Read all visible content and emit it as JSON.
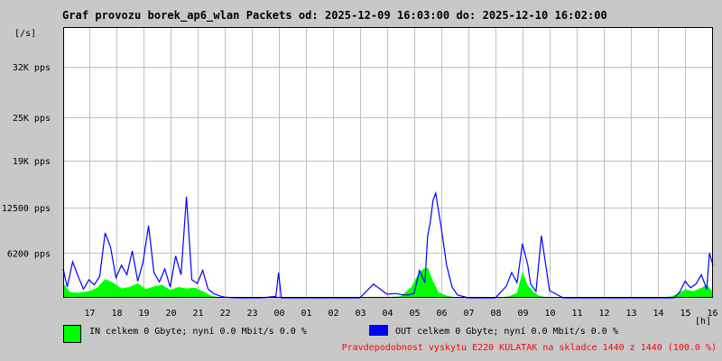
{
  "title": "Graf provozu borek_ap6_wlan Packets od: 2025-12-09 16:03:00 do: 2025-12-10 16:02:00",
  "legend": {
    "in_text": "IN celkem 0 Gbyte; nyní   0.0 Mbit/s 0.0 %",
    "out_text": "OUT celkem 0 Gbyte; nyní   0.0 Mbit/s 0.0 %"
  },
  "footer_note": "Pravdepodobnost vyskytu E220 KULATAK na skladce 1440 z 1440 (100.0 %)",
  "colors": {
    "in": "#00ff00",
    "out": "#0000ff",
    "grid": "#c0c0c0",
    "plot_bg": "#ffffff",
    "page_bg": "#c8c8c8"
  },
  "chart_data": {
    "type": "area",
    "title": "Graf provozu borek_ap6_wlan Packets od: 2025-12-09 16:03:00 do: 2025-12-10 16:02:00",
    "xlabel": "[h]",
    "ylabel": "[/s]",
    "x_ticks": [
      "17",
      "18",
      "19",
      "20",
      "21",
      "22",
      "23",
      "00",
      "01",
      "02",
      "03",
      "04",
      "05",
      "06",
      "07",
      "08",
      "09",
      "10",
      "11",
      "12",
      "13",
      "14",
      "15",
      "16"
    ],
    "y_ticks": [
      "6200 pps",
      "12500 pps",
      "19K pps",
      "25K pps",
      "32K pps"
    ],
    "y_tick_values": [
      6200,
      12500,
      19000,
      25000,
      32000
    ],
    "ylim": [
      0,
      37500
    ],
    "x_range_hours": [
      16.05,
      40.03
    ],
    "x_unit": "hours from 2025-12-09 00:00",
    "grid": true,
    "series": [
      {
        "name": "IN",
        "color": "#00ff00",
        "x": [
          16.05,
          16.3,
          16.6,
          17.0,
          17.3,
          17.6,
          17.9,
          18.2,
          18.5,
          18.8,
          19.1,
          19.4,
          19.7,
          20.0,
          20.3,
          20.6,
          20.9,
          21.2,
          21.5,
          21.8,
          22.0,
          22.5,
          23.0,
          24.0,
          25.0,
          26.0,
          26.8,
          27.5,
          28.0,
          28.5,
          28.9,
          29.1,
          29.3,
          29.5,
          29.7,
          29.9,
          30.2,
          30.5,
          30.8,
          31.0,
          31.5,
          32.0,
          32.5,
          32.8,
          33.0,
          33.2,
          33.4,
          33.6,
          34.0,
          35.0,
          36.0,
          37.0,
          38.0,
          38.5,
          38.8,
          39.0,
          39.3,
          39.6,
          39.8,
          40.03
        ],
        "values": [
          2000,
          800,
          700,
          900,
          1400,
          2600,
          2100,
          1300,
          1500,
          2000,
          1200,
          1600,
          1800,
          1100,
          1500,
          1300,
          1400,
          900,
          300,
          100,
          0,
          0,
          0,
          0,
          0,
          0,
          0,
          100,
          100,
          200,
          1500,
          2900,
          3900,
          4200,
          2300,
          800,
          300,
          100,
          0,
          0,
          0,
          0,
          200,
          700,
          3600,
          1700,
          900,
          300,
          0,
          0,
          0,
          0,
          0,
          200,
          700,
          1200,
          900,
          1400,
          1800,
          800
        ]
      },
      {
        "name": "OUT",
        "color": "#0000ff",
        "x": [
          16.05,
          16.2,
          16.4,
          16.6,
          16.8,
          17.0,
          17.2,
          17.4,
          17.6,
          17.8,
          18.0,
          18.2,
          18.4,
          18.6,
          18.8,
          19.0,
          19.2,
          19.4,
          19.6,
          19.8,
          20.0,
          20.2,
          20.4,
          20.6,
          20.8,
          21.0,
          21.2,
          21.4,
          21.6,
          21.8,
          22.0,
          22.5,
          23.0,
          23.3,
          23.5,
          23.9,
          24.0,
          24.1,
          24.5,
          25.0,
          25.4,
          25.8,
          26.0,
          26.3,
          26.6,
          27.0,
          27.5,
          28.0,
          28.3,
          28.6,
          28.8,
          29.0,
          29.2,
          29.4,
          29.5,
          29.6,
          29.7,
          29.8,
          30.0,
          30.2,
          30.4,
          30.6,
          31.0,
          31.5,
          32.0,
          32.4,
          32.6,
          32.8,
          33.0,
          33.2,
          33.3,
          33.5,
          33.7,
          34.0,
          34.5,
          35.0,
          35.5,
          36.0,
          36.5,
          37.0,
          37.5,
          38.0,
          38.2,
          38.4,
          38.6,
          38.8,
          39.0,
          39.2,
          39.4,
          39.6,
          39.8,
          39.9,
          40.03
        ],
        "values": [
          4000,
          1500,
          5000,
          3000,
          1200,
          2500,
          1800,
          3000,
          9000,
          7000,
          2800,
          4500,
          3200,
          6500,
          2300,
          5000,
          10000,
          3500,
          2200,
          4000,
          1500,
          5800,
          3200,
          14000,
          2500,
          2000,
          3800,
          1200,
          600,
          300,
          100,
          0,
          0,
          0,
          50,
          200,
          3500,
          0,
          0,
          0,
          0,
          0,
          0,
          0,
          0,
          0,
          1900,
          500,
          600,
          400,
          400,
          600,
          3800,
          2100,
          8500,
          10500,
          13500,
          14500,
          9800,
          4500,
          1500,
          400,
          0,
          0,
          0,
          1600,
          3500,
          2100,
          7500,
          4500,
          1900,
          900,
          8600,
          1000,
          0,
          0,
          0,
          0,
          0,
          0,
          0,
          0,
          0,
          0,
          0,
          800,
          2300,
          1400,
          1900,
          3200,
          1200,
          6200,
          4500
        ]
      }
    ]
  }
}
